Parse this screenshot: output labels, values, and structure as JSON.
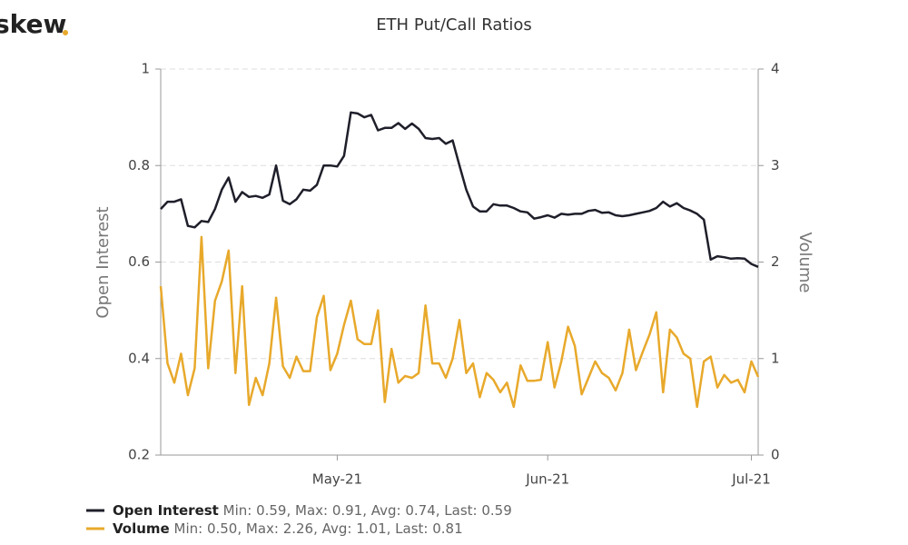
{
  "chart_data": {
    "type": "line",
    "title": "ETH Put/Call Ratios",
    "logo": "skew",
    "categories": [
      null,
      null,
      null,
      null,
      null,
      null,
      null,
      null,
      null,
      null,
      null,
      null,
      null,
      null,
      null,
      null,
      null,
      null,
      null,
      null,
      null,
      null,
      null,
      null,
      null,
      null,
      "May-21",
      null,
      null,
      null,
      null,
      null,
      null,
      null,
      null,
      null,
      null,
      null,
      null,
      null,
      null,
      null,
      null,
      null,
      null,
      null,
      null,
      null,
      null,
      null,
      null,
      null,
      null,
      null,
      null,
      null,
      null,
      "Jun-21",
      null,
      null,
      null,
      null,
      null,
      null,
      null,
      null,
      null,
      null,
      null,
      null,
      null,
      null,
      null,
      null,
      null,
      null,
      null,
      null,
      null,
      null,
      null,
      null,
      null,
      null,
      null,
      null,
      null,
      "Jul-21",
      null
    ],
    "ylabel": "Open Interest",
    "y2label": "Volume",
    "ylim": [
      0.2,
      1
    ],
    "yticks": [
      0.2,
      0.4,
      0.6,
      0.8,
      1
    ],
    "y2lim": [
      0,
      4
    ],
    "y2ticks": [
      0,
      1,
      2,
      3,
      4
    ],
    "grid": true,
    "series": [
      {
        "name": "Open Interest",
        "color": "#1f1f2b",
        "stats": "Min: 0.59, Max: 0.91, Avg: 0.74, Last: 0.59",
        "values": [
          0.71,
          0.725,
          0.725,
          0.73,
          0.675,
          0.672,
          0.685,
          0.683,
          0.71,
          0.75,
          0.775,
          0.725,
          0.745,
          0.735,
          0.737,
          0.733,
          0.74,
          0.8,
          0.727,
          0.72,
          0.73,
          0.75,
          0.748,
          0.76,
          0.8,
          0.8,
          0.798,
          0.82,
          0.91,
          0.908,
          0.9,
          0.905,
          0.873,
          0.878,
          0.878,
          0.888,
          0.876,
          0.887,
          0.876,
          0.857,
          0.855,
          0.857,
          0.845,
          0.852,
          0.8,
          0.75,
          0.715,
          0.705,
          0.705,
          0.72,
          0.717,
          0.717,
          0.712,
          0.705,
          0.703,
          0.69,
          0.693,
          0.697,
          0.692,
          0.7,
          0.698,
          0.7,
          0.7,
          0.706,
          0.708,
          0.702,
          0.703,
          0.697,
          0.695,
          0.697,
          0.7,
          0.703,
          0.706,
          0.712,
          0.725,
          0.715,
          0.722,
          0.712,
          0.707,
          0.7,
          0.688,
          0.605,
          0.612,
          0.61,
          0.607,
          0.608,
          0.607,
          0.596,
          0.59
        ]
      },
      {
        "name": "Volume",
        "color": "#e8a92b",
        "axis": "y2",
        "stats": "Min: 0.50, Max: 2.26, Avg: 1.01, Last: 0.81",
        "values": [
          1.75,
          0.95,
          0.75,
          1.05,
          0.62,
          0.9,
          2.26,
          0.9,
          1.6,
          1.8,
          2.12,
          0.85,
          1.75,
          0.52,
          0.8,
          0.62,
          0.95,
          1.63,
          0.92,
          0.8,
          1.02,
          0.87,
          0.87,
          1.43,
          1.65,
          0.88,
          1.05,
          1.35,
          1.6,
          1.2,
          1.15,
          1.15,
          1.5,
          0.55,
          1.1,
          0.75,
          0.82,
          0.8,
          0.85,
          1.55,
          0.95,
          0.95,
          0.8,
          1.0,
          1.4,
          0.85,
          0.95,
          0.6,
          0.85,
          0.78,
          0.65,
          0.75,
          0.5,
          0.93,
          0.77,
          0.77,
          0.78,
          1.17,
          0.7,
          0.97,
          1.33,
          1.13,
          0.63,
          0.8,
          0.97,
          0.85,
          0.8,
          0.67,
          0.85,
          1.3,
          0.88,
          1.07,
          1.25,
          1.48,
          0.65,
          1.3,
          1.22,
          1.05,
          1.0,
          0.5,
          0.97,
          1.02,
          0.7,
          0.83,
          0.75,
          0.78,
          0.65,
          0.97,
          0.81
        ]
      }
    ]
  }
}
